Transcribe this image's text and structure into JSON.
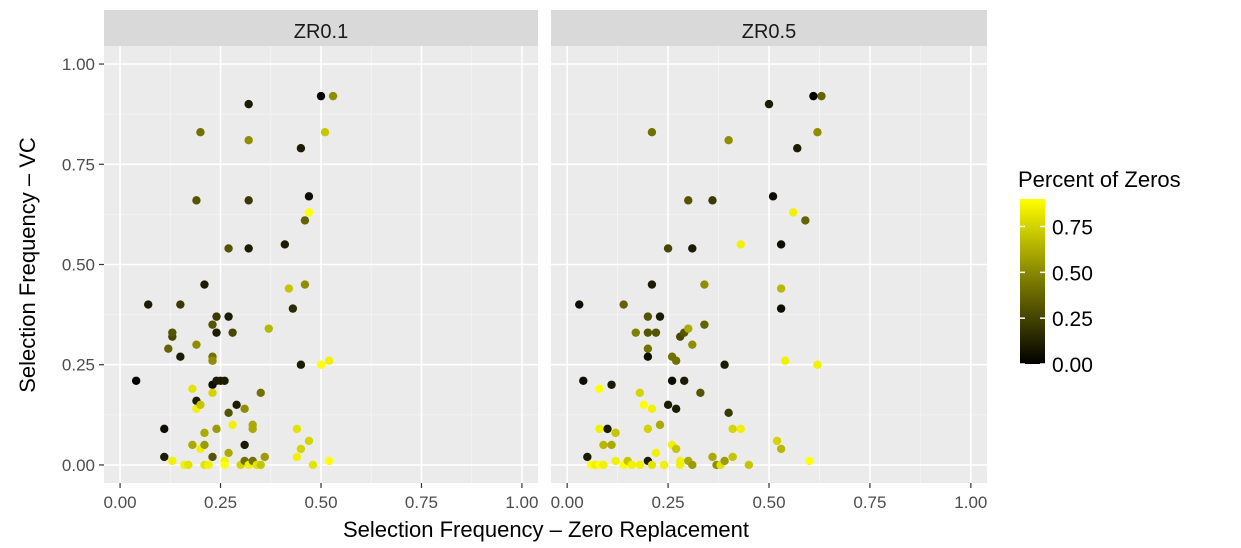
{
  "chart_data": {
    "type": "scatter",
    "xlabel": "Selection Frequency – Zero Replacement",
    "ylabel": "Selection Frequency – VC",
    "xlim": [
      -0.04,
      1.04
    ],
    "ylim": [
      -0.045,
      1.045
    ],
    "x_ticks": [
      "0.00",
      "0.25",
      "0.50",
      "0.75",
      "1.00"
    ],
    "y_ticks": [
      "0.00",
      "0.25",
      "0.50",
      "0.75",
      "1.00"
    ],
    "grid": true,
    "legend": {
      "title": "Percent of Zeros",
      "position": "right",
      "ticks": [
        "0.00",
        "0.25",
        "0.50",
        "0.75"
      ],
      "range": [
        0,
        0.9
      ],
      "colors": [
        "#000000",
        "#ffff00"
      ]
    },
    "colors": {
      "panel_bg": "#ebebeb",
      "strip_bg": "#d9d9d9",
      "grid_major": "#ffffff",
      "text": "#4d4d4d",
      "low": "#000000",
      "high": "#ffff00"
    },
    "facets": [
      {
        "label": "ZR0.1",
        "points": [
          {
            "x": 0.04,
            "y": 0.21,
            "c": 0.0
          },
          {
            "x": 0.07,
            "y": 0.4,
            "c": 0.1
          },
          {
            "x": 0.11,
            "y": 0.09,
            "c": 0.05
          },
          {
            "x": 0.11,
            "y": 0.02,
            "c": 0.1
          },
          {
            "x": 0.12,
            "y": 0.29,
            "c": 0.35
          },
          {
            "x": 0.13,
            "y": 0.32,
            "c": 0.25
          },
          {
            "x": 0.13,
            "y": 0.33,
            "c": 0.3
          },
          {
            "x": 0.13,
            "y": 0.01,
            "c": 0.85
          },
          {
            "x": 0.15,
            "y": 0.4,
            "c": 0.2
          },
          {
            "x": 0.15,
            "y": 0.27,
            "c": 0.1
          },
          {
            "x": 0.16,
            "y": 0.0,
            "c": 0.85
          },
          {
            "x": 0.17,
            "y": 0.0,
            "c": 0.8
          },
          {
            "x": 0.18,
            "y": 0.19,
            "c": 0.8
          },
          {
            "x": 0.18,
            "y": 0.05,
            "c": 0.6
          },
          {
            "x": 0.19,
            "y": 0.66,
            "c": 0.3
          },
          {
            "x": 0.19,
            "y": 0.3,
            "c": 0.5
          },
          {
            "x": 0.19,
            "y": 0.16,
            "c": 0.1
          },
          {
            "x": 0.19,
            "y": 0.14,
            "c": 0.85
          },
          {
            "x": 0.2,
            "y": 0.83,
            "c": 0.4
          },
          {
            "x": 0.2,
            "y": 0.15,
            "c": 0.7
          },
          {
            "x": 0.2,
            "y": 0.04,
            "c": 0.85
          },
          {
            "x": 0.21,
            "y": 0.45,
            "c": 0.1
          },
          {
            "x": 0.21,
            "y": 0.08,
            "c": 0.6
          },
          {
            "x": 0.21,
            "y": 0.05,
            "c": 0.55
          },
          {
            "x": 0.21,
            "y": 0.0,
            "c": 0.8
          },
          {
            "x": 0.22,
            "y": 0.0,
            "c": 0.85
          },
          {
            "x": 0.23,
            "y": 0.35,
            "c": 0.3
          },
          {
            "x": 0.23,
            "y": 0.27,
            "c": 0.4
          },
          {
            "x": 0.23,
            "y": 0.26,
            "c": 0.5
          },
          {
            "x": 0.23,
            "y": 0.2,
            "c": 0.05
          },
          {
            "x": 0.23,
            "y": 0.18,
            "c": 0.75
          },
          {
            "x": 0.23,
            "y": 0.02,
            "c": 0.3
          },
          {
            "x": 0.24,
            "y": 0.37,
            "c": 0.2
          },
          {
            "x": 0.24,
            "y": 0.33,
            "c": 0.1
          },
          {
            "x": 0.24,
            "y": 0.21,
            "c": 0.1
          },
          {
            "x": 0.24,
            "y": 0.09,
            "c": 0.55
          },
          {
            "x": 0.25,
            "y": 0.21,
            "c": 0.1
          },
          {
            "x": 0.26,
            "y": 0.21,
            "c": 0.1
          },
          {
            "x": 0.26,
            "y": 0.01,
            "c": 0.85
          },
          {
            "x": 0.26,
            "y": 0.0,
            "c": 0.9
          },
          {
            "x": 0.27,
            "y": 0.54,
            "c": 0.3
          },
          {
            "x": 0.27,
            "y": 0.37,
            "c": 0.1
          },
          {
            "x": 0.27,
            "y": 0.13,
            "c": 0.3
          },
          {
            "x": 0.27,
            "y": 0.03,
            "c": 0.6
          },
          {
            "x": 0.28,
            "y": 0.33,
            "c": 0.25
          },
          {
            "x": 0.28,
            "y": 0.1,
            "c": 0.85
          },
          {
            "x": 0.29,
            "y": 0.15,
            "c": 0.1
          },
          {
            "x": 0.3,
            "y": 0.0,
            "c": 0.75
          },
          {
            "x": 0.31,
            "y": 0.14,
            "c": 0.5
          },
          {
            "x": 0.31,
            "y": 0.05,
            "c": 0.1
          },
          {
            "x": 0.31,
            "y": 0.01,
            "c": 0.4
          },
          {
            "x": 0.32,
            "y": 0.9,
            "c": 0.1
          },
          {
            "x": 0.32,
            "y": 0.81,
            "c": 0.5
          },
          {
            "x": 0.32,
            "y": 0.66,
            "c": 0.2
          },
          {
            "x": 0.32,
            "y": 0.54,
            "c": 0.1
          },
          {
            "x": 0.32,
            "y": 0.0,
            "c": 0.85
          },
          {
            "x": 0.33,
            "y": 0.1,
            "c": 0.6
          },
          {
            "x": 0.33,
            "y": 0.09,
            "c": 0.6
          },
          {
            "x": 0.33,
            "y": 0.01,
            "c": 0.4
          },
          {
            "x": 0.34,
            "y": 0.0,
            "c": 0.8
          },
          {
            "x": 0.35,
            "y": 0.18,
            "c": 0.4
          },
          {
            "x": 0.35,
            "y": 0.0,
            "c": 0.7
          },
          {
            "x": 0.36,
            "y": 0.02,
            "c": 0.55
          },
          {
            "x": 0.37,
            "y": 0.34,
            "c": 0.65
          },
          {
            "x": 0.41,
            "y": 0.55,
            "c": 0.1
          },
          {
            "x": 0.42,
            "y": 0.44,
            "c": 0.7
          },
          {
            "x": 0.43,
            "y": 0.39,
            "c": 0.15
          },
          {
            "x": 0.44,
            "y": 0.09,
            "c": 0.8
          },
          {
            "x": 0.44,
            "y": 0.02,
            "c": 0.85
          },
          {
            "x": 0.45,
            "y": 0.79,
            "c": 0.1
          },
          {
            "x": 0.45,
            "y": 0.25,
            "c": 0.1
          },
          {
            "x": 0.45,
            "y": 0.04,
            "c": 0.75
          },
          {
            "x": 0.46,
            "y": 0.61,
            "c": 0.35
          },
          {
            "x": 0.46,
            "y": 0.45,
            "c": 0.5
          },
          {
            "x": 0.47,
            "y": 0.67,
            "c": 0.05
          },
          {
            "x": 0.47,
            "y": 0.63,
            "c": 0.9
          },
          {
            "x": 0.47,
            "y": 0.06,
            "c": 0.75
          },
          {
            "x": 0.48,
            "y": 0.0,
            "c": 0.8
          },
          {
            "x": 0.5,
            "y": 0.92,
            "c": 0.0
          },
          {
            "x": 0.5,
            "y": 0.25,
            "c": 0.9
          },
          {
            "x": 0.51,
            "y": 0.83,
            "c": 0.7
          },
          {
            "x": 0.52,
            "y": 0.26,
            "c": 0.85
          },
          {
            "x": 0.52,
            "y": 0.01,
            "c": 0.9
          },
          {
            "x": 0.53,
            "y": 0.92,
            "c": 0.5
          }
        ]
      },
      {
        "label": "ZR0.5",
        "points": [
          {
            "x": 0.03,
            "y": 0.4,
            "c": 0.05
          },
          {
            "x": 0.04,
            "y": 0.21,
            "c": 0.05
          },
          {
            "x": 0.05,
            "y": 0.02,
            "c": 0.1
          },
          {
            "x": 0.06,
            "y": 0.0,
            "c": 0.9
          },
          {
            "x": 0.07,
            "y": 0.0,
            "c": 0.85
          },
          {
            "x": 0.08,
            "y": 0.19,
            "c": 0.9
          },
          {
            "x": 0.08,
            "y": 0.09,
            "c": 0.85
          },
          {
            "x": 0.08,
            "y": 0.0,
            "c": 0.9
          },
          {
            "x": 0.09,
            "y": 0.05,
            "c": 0.65
          },
          {
            "x": 0.09,
            "y": 0.0,
            "c": 0.85
          },
          {
            "x": 0.1,
            "y": 0.09,
            "c": 0.1
          },
          {
            "x": 0.11,
            "y": 0.2,
            "c": 0.1
          },
          {
            "x": 0.11,
            "y": 0.05,
            "c": 0.6
          },
          {
            "x": 0.12,
            "y": 0.08,
            "c": 0.7
          },
          {
            "x": 0.12,
            "y": 0.01,
            "c": 0.85
          },
          {
            "x": 0.14,
            "y": 0.4,
            "c": 0.35
          },
          {
            "x": 0.14,
            "y": 0.0,
            "c": 0.9
          },
          {
            "x": 0.15,
            "y": 0.01,
            "c": 0.7
          },
          {
            "x": 0.16,
            "y": 0.0,
            "c": 0.85
          },
          {
            "x": 0.17,
            "y": 0.33,
            "c": 0.45
          },
          {
            "x": 0.18,
            "y": 0.0,
            "c": 0.85
          },
          {
            "x": 0.18,
            "y": 0.18,
            "c": 0.75
          },
          {
            "x": 0.19,
            "y": 0.15,
            "c": 0.9
          },
          {
            "x": 0.2,
            "y": 0.37,
            "c": 0.3
          },
          {
            "x": 0.2,
            "y": 0.33,
            "c": 0.3
          },
          {
            "x": 0.2,
            "y": 0.29,
            "c": 0.4
          },
          {
            "x": 0.2,
            "y": 0.27,
            "c": 0.05
          },
          {
            "x": 0.2,
            "y": 0.09,
            "c": 0.75
          },
          {
            "x": 0.2,
            "y": 0.01,
            "c": 0.1
          },
          {
            "x": 0.21,
            "y": 0.83,
            "c": 0.4
          },
          {
            "x": 0.21,
            "y": 0.45,
            "c": 0.1
          },
          {
            "x": 0.21,
            "y": 0.14,
            "c": 0.85
          },
          {
            "x": 0.21,
            "y": 0.0,
            "c": 0.8
          },
          {
            "x": 0.22,
            "y": 0.33,
            "c": 0.3
          },
          {
            "x": 0.22,
            "y": 0.03,
            "c": 0.85
          },
          {
            "x": 0.23,
            "y": 0.37,
            "c": 0.1
          },
          {
            "x": 0.23,
            "y": 0.1,
            "c": 0.6
          },
          {
            "x": 0.24,
            "y": 0.0,
            "c": 0.85
          },
          {
            "x": 0.25,
            "y": 0.54,
            "c": 0.25
          },
          {
            "x": 0.25,
            "y": 0.15,
            "c": 0.1
          },
          {
            "x": 0.26,
            "y": 0.27,
            "c": 0.4
          },
          {
            "x": 0.26,
            "y": 0.21,
            "c": 0.05
          },
          {
            "x": 0.26,
            "y": 0.05,
            "c": 0.85
          },
          {
            "x": 0.27,
            "y": 0.26,
            "c": 0.4
          },
          {
            "x": 0.27,
            "y": 0.14,
            "c": 0.1
          },
          {
            "x": 0.27,
            "y": 0.04,
            "c": 0.7
          },
          {
            "x": 0.28,
            "y": 0.32,
            "c": 0.25
          },
          {
            "x": 0.28,
            "y": 0.01,
            "c": 0.85
          },
          {
            "x": 0.28,
            "y": 0.0,
            "c": 0.85
          },
          {
            "x": 0.29,
            "y": 0.33,
            "c": 0.3
          },
          {
            "x": 0.29,
            "y": 0.21,
            "c": 0.1
          },
          {
            "x": 0.3,
            "y": 0.66,
            "c": 0.3
          },
          {
            "x": 0.3,
            "y": 0.34,
            "c": 0.6
          },
          {
            "x": 0.3,
            "y": 0.01,
            "c": 0.6
          },
          {
            "x": 0.31,
            "y": 0.54,
            "c": 0.1
          },
          {
            "x": 0.31,
            "y": 0.3,
            "c": 0.5
          },
          {
            "x": 0.31,
            "y": 0.0,
            "c": 0.55
          },
          {
            "x": 0.33,
            "y": 0.18,
            "c": 0.3
          },
          {
            "x": 0.34,
            "y": 0.45,
            "c": 0.5
          },
          {
            "x": 0.34,
            "y": 0.35,
            "c": 0.35
          },
          {
            "x": 0.36,
            "y": 0.02,
            "c": 0.6
          },
          {
            "x": 0.36,
            "y": 0.66,
            "c": 0.2
          },
          {
            "x": 0.37,
            "y": 0.0,
            "c": 0.5
          },
          {
            "x": 0.38,
            "y": 0.0,
            "c": 0.8
          },
          {
            "x": 0.39,
            "y": 0.25,
            "c": 0.1
          },
          {
            "x": 0.39,
            "y": 0.01,
            "c": 0.55
          },
          {
            "x": 0.4,
            "y": 0.81,
            "c": 0.5
          },
          {
            "x": 0.4,
            "y": 0.13,
            "c": 0.2
          },
          {
            "x": 0.41,
            "y": 0.09,
            "c": 0.75
          },
          {
            "x": 0.41,
            "y": 0.02,
            "c": 0.7
          },
          {
            "x": 0.43,
            "y": 0.09,
            "c": 0.85
          },
          {
            "x": 0.43,
            "y": 0.55,
            "c": 0.85
          },
          {
            "x": 0.45,
            "y": 0.0,
            "c": 0.7
          },
          {
            "x": 0.5,
            "y": 0.9,
            "c": 0.1
          },
          {
            "x": 0.51,
            "y": 0.67,
            "c": 0.05
          },
          {
            "x": 0.52,
            "y": 0.06,
            "c": 0.75
          },
          {
            "x": 0.53,
            "y": 0.55,
            "c": 0.05
          },
          {
            "x": 0.53,
            "y": 0.44,
            "c": 0.65
          },
          {
            "x": 0.53,
            "y": 0.39,
            "c": 0.05
          },
          {
            "x": 0.53,
            "y": 0.04,
            "c": 0.65
          },
          {
            "x": 0.54,
            "y": 0.26,
            "c": 0.85
          },
          {
            "x": 0.56,
            "y": 0.63,
            "c": 0.85
          },
          {
            "x": 0.57,
            "y": 0.79,
            "c": 0.1
          },
          {
            "x": 0.59,
            "y": 0.61,
            "c": 0.35
          },
          {
            "x": 0.6,
            "y": 0.01,
            "c": 0.9
          },
          {
            "x": 0.61,
            "y": 0.92,
            "c": 0.0
          },
          {
            "x": 0.62,
            "y": 0.25,
            "c": 0.85
          },
          {
            "x": 0.62,
            "y": 0.83,
            "c": 0.5
          },
          {
            "x": 0.63,
            "y": 0.92,
            "c": 0.35
          }
        ]
      }
    ]
  }
}
